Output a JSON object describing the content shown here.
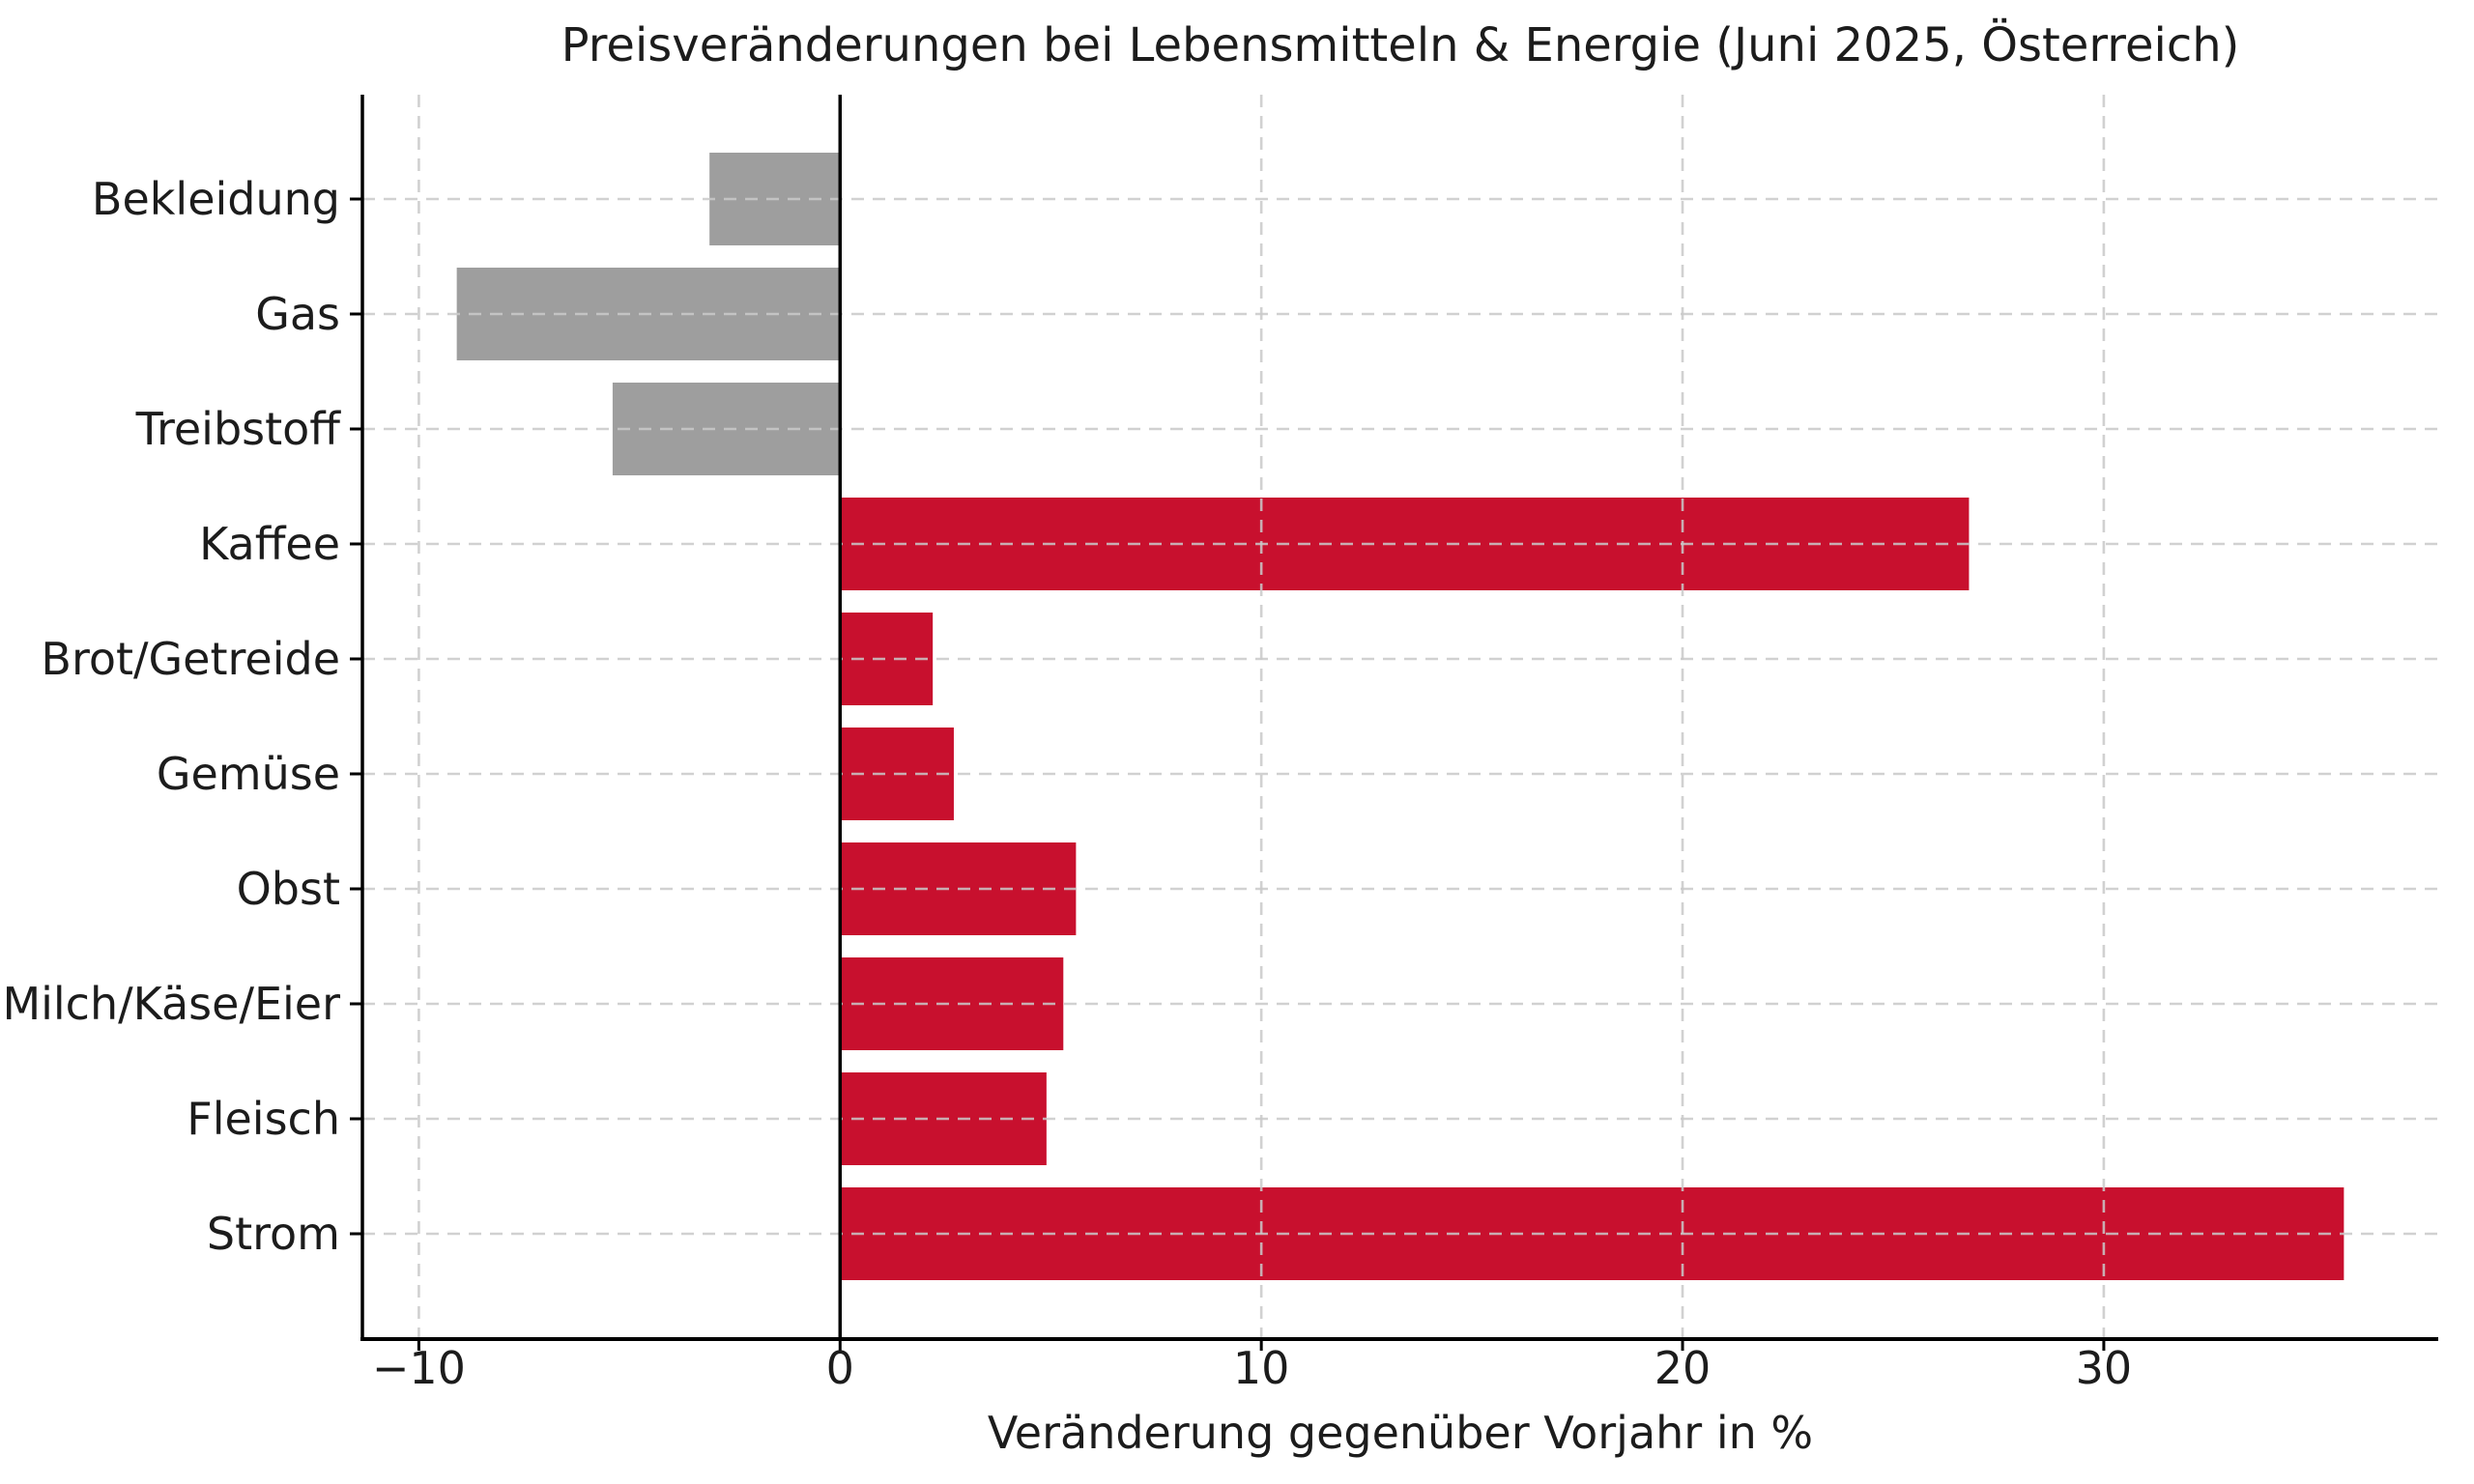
{
  "page": {
    "background_color": "#ffffff",
    "text_color": "#1c1c1c",
    "axis_color": "#000000",
    "grid_color": "#c9c9c9"
  },
  "chart_data": {
    "type": "bar",
    "orientation": "horizontal",
    "title": "Preisveränderungen bei Lebensmitteln & Energie (Juni 2025, Österreich)",
    "xlabel": "Veränderung gegenüber Vorjahr in %",
    "categories": [
      "Bekleidung",
      "Gas",
      "Treibstoff",
      "Kaffee",
      "Brot/Getreide",
      "Gemüse",
      "Obst",
      "Milch/Käse/Eier",
      "Fleisch",
      "Strom"
    ],
    "values": [
      -3.1,
      -9.1,
      -5.4,
      26.8,
      2.2,
      2.7,
      5.6,
      5.3,
      4.9,
      35.7
    ],
    "positive_color": "#c8102e",
    "negative_color": "#9e9e9e",
    "xticks": [
      -10,
      0,
      10,
      20,
      30
    ],
    "xtick_labels": [
      "−10",
      "0",
      "10",
      "20",
      "30"
    ],
    "xlim": [
      -11.34,
      37.94
    ],
    "grid": {
      "style": "dashed",
      "color": "#c9c9c9",
      "drawn_over_bars": true
    },
    "zero_line": true,
    "legend": null
  }
}
